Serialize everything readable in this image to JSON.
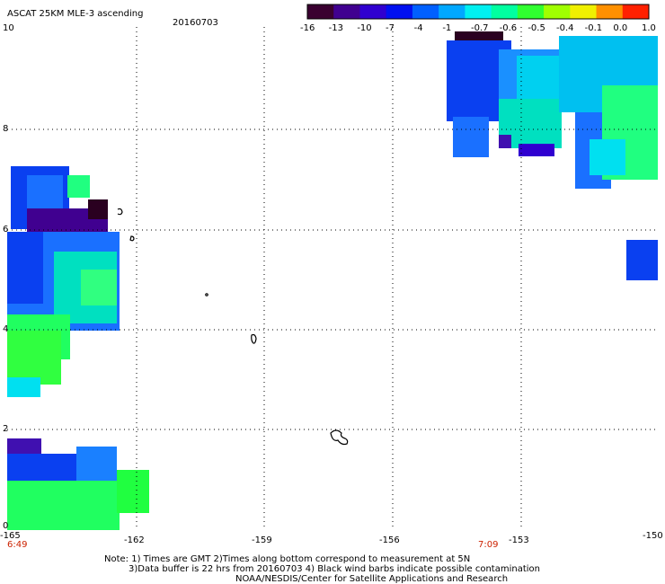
{
  "title": "ASCAT 25KM MLE-3 ascending",
  "date": "20160703",
  "colorbar": {
    "ticks": [
      "-16",
      "-13",
      "-10",
      "-7",
      "-4",
      "-1",
      "-0.7",
      "-0.6",
      "-0.5",
      "-0.4",
      "-0.1",
      "0.0",
      "1.0"
    ],
    "colors": [
      "#3a0030",
      "#400090",
      "#3000d0",
      "#0010f0",
      "#0060ff",
      "#00a8ff",
      "#00f0f0",
      "#00ffa0",
      "#30ff30",
      "#a0ff00",
      "#f0f000",
      "#ff9000",
      "#ff2000"
    ]
  },
  "axes": {
    "x_ticks": [
      "-165",
      "-162",
      "-159",
      "-156",
      "-153",
      "-150"
    ],
    "y_ticks": [
      "0",
      "2",
      "4",
      "6",
      "8",
      "10"
    ],
    "x_range": [
      -165,
      -150
    ],
    "y_range": [
      0,
      10
    ]
  },
  "time_labels": {
    "left": "6:49",
    "right": "7:09"
  },
  "notes": {
    "line1": "Note: 1) Times are GMT 2)Times along bottom correspond to measurement at 5N",
    "line2": "3)Data buffer is 22 hrs from 20160703 4) Black wind barbs indicate possible contamination",
    "line3": "NOAA/NESDIS/Center for Satellite Applications and Research"
  },
  "colors": {
    "blue": "#0a40f0",
    "mid_blue": "#1a70ff",
    "cyan": "#00e0f0",
    "green": "#20ff40",
    "purple": "#4010b0",
    "dark": "#2a0020"
  }
}
